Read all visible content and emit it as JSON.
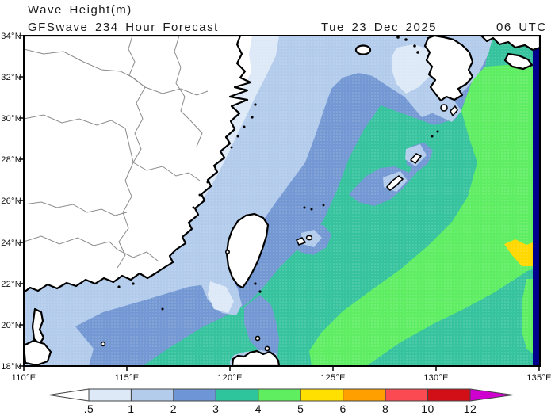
{
  "header": {
    "title": "Wave Height(m)",
    "model_line": "GFSwave 234 Hour Forecast",
    "valid_date": "Tue 23 Dec 2025",
    "cycle": "06 UTC"
  },
  "map": {
    "x_axis": {
      "labels": [
        "110°E",
        "115°E",
        "120°E",
        "125°E",
        "130°E",
        "135°E"
      ]
    },
    "y_axis": {
      "labels": [
        "34°N",
        "32°N",
        "30°N",
        "28°N",
        "26°N",
        "24°N",
        "22°N",
        "20°N",
        "18°N"
      ]
    },
    "colors": {
      "land": "#ffffff",
      "coastline": "#000000",
      "province_border": "#8a8a8a",
      "sea_below_0_5": "#ffffff",
      "sea_0_5_1": "#dde9f7",
      "sea_1_2": "#b3ccec",
      "sea_2_3": "#7498d3",
      "sea_3_4": "#36c39e",
      "sea_4_5": "#5fee63",
      "sea_5_6": "#ffd800",
      "edge_strip": "#00008c"
    }
  },
  "legend": {
    "labels": [
      ".5",
      "1",
      "2",
      "3",
      "4",
      "5",
      "6",
      "8",
      "10",
      "12"
    ],
    "values": [
      0.5,
      1,
      2,
      3,
      4,
      5,
      6,
      8,
      10,
      12
    ],
    "segment_colors": [
      "#dde9f7",
      "#b3ccec",
      "#6e96d6",
      "#2ec49c",
      "#5fee5f",
      "#ffe000",
      "#ffa000",
      "#fb4a52",
      "#d20f16"
    ],
    "below_color": "#ffffff",
    "above_color": "#cf00cf",
    "outline_color": "#444444"
  }
}
